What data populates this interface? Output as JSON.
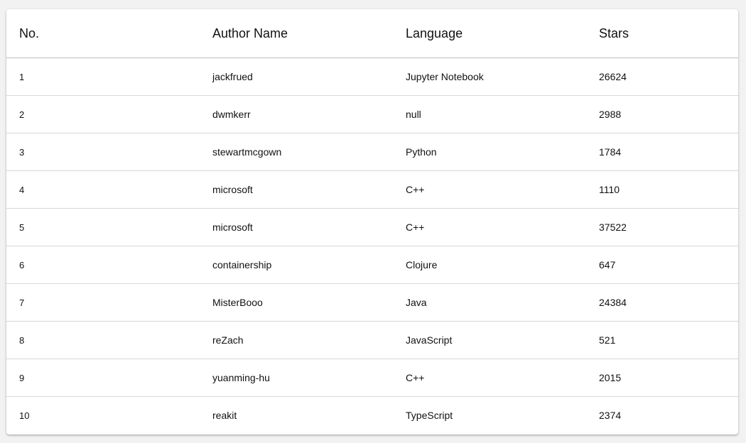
{
  "table": {
    "headers": {
      "no": "No.",
      "author": "Author Name",
      "language": "Language",
      "stars": "Stars"
    },
    "rows": [
      {
        "no": "1",
        "author": "jackfrued",
        "language": "Jupyter Notebook",
        "stars": "26624"
      },
      {
        "no": "2",
        "author": "dwmkerr",
        "language": "null",
        "stars": "2988"
      },
      {
        "no": "3",
        "author": "stewartmcgown",
        "language": "Python",
        "stars": "1784"
      },
      {
        "no": "4",
        "author": "microsoft",
        "language": "C++",
        "stars": "1110"
      },
      {
        "no": "5",
        "author": "microsoft",
        "language": "C++",
        "stars": "37522"
      },
      {
        "no": "6",
        "author": "containership",
        "language": "Clojure",
        "stars": "647"
      },
      {
        "no": "7",
        "author": "MisterBooo",
        "language": "Java",
        "stars": "24384"
      },
      {
        "no": "8",
        "author": "reZach",
        "language": "JavaScript",
        "stars": "521"
      },
      {
        "no": "9",
        "author": "yuanming-hu",
        "language": "C++",
        "stars": "2015"
      },
      {
        "no": "10",
        "author": "reakit",
        "language": "TypeScript",
        "stars": "2374"
      }
    ]
  }
}
